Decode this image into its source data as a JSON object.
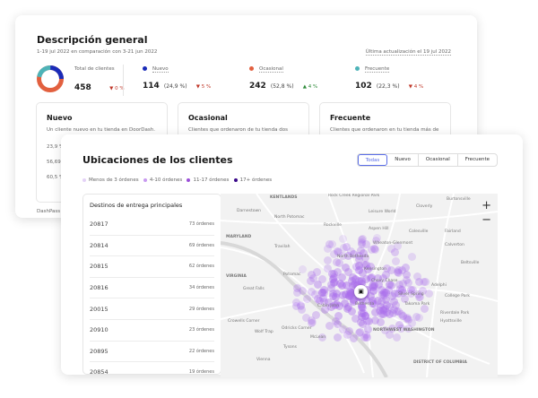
{
  "overview": {
    "title": "Descripción general",
    "subtitle": "1-19 jul 2022 en comparación con 3-21 jun 2022",
    "updated": "Última actualización el 19 jul 2022",
    "total": {
      "label": "Total de clientes",
      "value": "458",
      "change": "▼ 0 %"
    },
    "segments": [
      {
        "label": "Nuevo",
        "value": "114",
        "pct": "(24,9 %)",
        "change": "▼ 5 %",
        "dir": "down",
        "color": "#1a2bb8"
      },
      {
        "label": "Ocasional",
        "value": "242",
        "pct": "(52,8 %)",
        "change": "▲ 4 %",
        "dir": "up",
        "color": "#e2603f"
      },
      {
        "label": "Frecuente",
        "value": "102",
        "pct": "(22,3 %)",
        "change": "▼ 4 %",
        "dir": "down",
        "color": "#4db3b8"
      }
    ],
    "cards": [
      {
        "title": "Nuevo",
        "desc": "Un cliente nuevo en tu tienda en DoorDash.",
        "rows": [
          "23,9 %",
          "56,69",
          "60,5 %"
        ]
      },
      {
        "title": "Ocasional",
        "desc": "Clientes que ordenaron de tu tienda dos"
      },
      {
        "title": "Frecuente",
        "desc": "Clientes que ordenaron en tu tienda más de"
      }
    ],
    "footer": "DashPass"
  },
  "locations": {
    "title": "Ubicaciones de los clientes",
    "filters": [
      "Todas",
      "Nuevo",
      "Ocasional",
      "Frecuente"
    ],
    "active_filter": "Todas",
    "legend": [
      {
        "label": "Menos de 3 órdenes",
        "color": "#e4d2f7"
      },
      {
        "label": "4-10 órdenes",
        "color": "#c89af0"
      },
      {
        "label": "11-17 órdenes",
        "color": "#9b4fd8"
      },
      {
        "label": "17+ órdenes",
        "color": "#3b0a8a"
      }
    ],
    "list_title": "Destinos de entrega principales",
    "destinations": [
      [
        "20817",
        "73 órdenes"
      ],
      [
        "20814",
        "69 órdenes"
      ],
      [
        "20815",
        "62 órdenes"
      ],
      [
        "20816",
        "34 órdenes"
      ],
      [
        "20015",
        "29 órdenes"
      ],
      [
        "20910",
        "23 órdenes"
      ],
      [
        "20895",
        "22 órdenes"
      ],
      [
        "20854",
        "19 órdenes"
      ]
    ],
    "map_labels": [
      "KENTLANDS",
      "Rock Creek Regional Park",
      "Cloverly",
      "Burtonsville",
      "Darnestown",
      "North Potomac",
      "Leisure World",
      "Rockville",
      "Aspen Hill",
      "Colesville",
      "Fairland",
      "Wheaton-Glenmont",
      "Calverton",
      "Travilah",
      "North Bethesda",
      "Beltsville",
      "MARYLAND",
      "VIRGINIA",
      "Potomac",
      "Kensington",
      "Adelphi",
      "Great Falls",
      "Chevy Chase",
      "Silver Spring",
      "College Park",
      "Cabin John",
      "Bethesda",
      "Takoma Park",
      "Riverdale Park",
      "Hyattsville",
      "Crowells Corner",
      "Wolf Trap",
      "Odricks Corner",
      "McLean",
      "NORTHWEST WASHINGTON",
      "DISTRICT OF COLUMBIA",
      "Tysons",
      "Vienna"
    ],
    "zoom_in": "+",
    "zoom_out": "−"
  }
}
